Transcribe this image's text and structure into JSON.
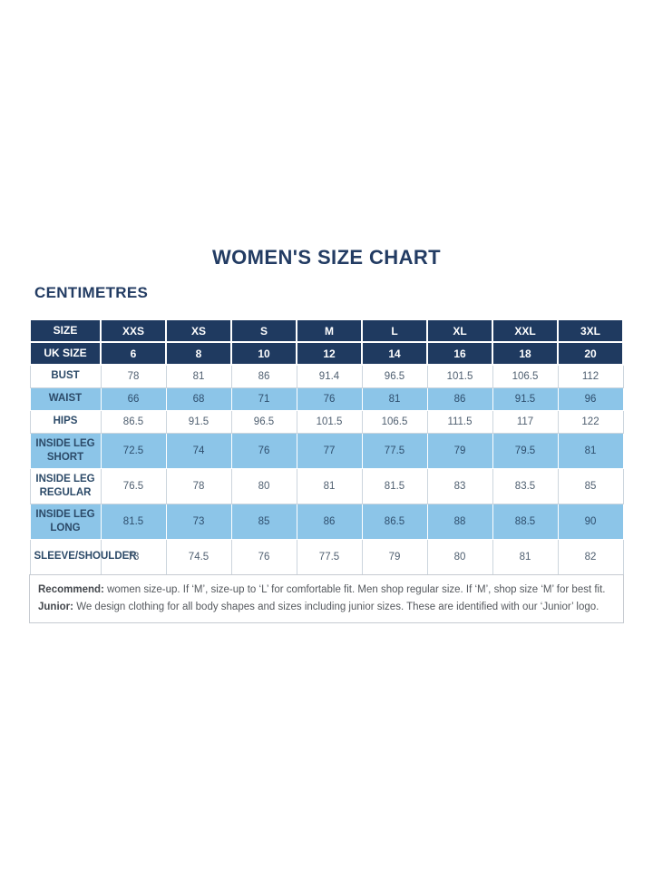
{
  "page": {
    "title": "WOMEN'S SIZE CHART",
    "subtitle": "CENTIMETRES"
  },
  "colors": {
    "header_navy": "#1f3a60",
    "shaded_blue": "#8cc5e8",
    "title_navy": "#233c63",
    "value_text": "#4f5f70",
    "border_gray": "#ccd5dd"
  },
  "table": {
    "rows": [
      {
        "style": "header",
        "tall": false,
        "label": "SIZE",
        "values": [
          "XXS",
          "XS",
          "S",
          "M",
          "L",
          "XL",
          "XXL",
          "3XL"
        ]
      },
      {
        "style": "header",
        "tall": false,
        "label": "UK SIZE",
        "values": [
          "6",
          "8",
          "10",
          "12",
          "14",
          "16",
          "18",
          "20"
        ]
      },
      {
        "style": "plain",
        "tall": false,
        "label": "BUST",
        "values": [
          "78",
          "81",
          "86",
          "91.4",
          "96.5",
          "101.5",
          "106.5",
          "112"
        ]
      },
      {
        "style": "shaded",
        "tall": false,
        "label": "WAIST",
        "values": [
          "66",
          "68",
          "71",
          "76",
          "81",
          "86",
          "91.5",
          "96"
        ]
      },
      {
        "style": "plain",
        "tall": false,
        "label": "HIPS",
        "values": [
          "86.5",
          "91.5",
          "96.5",
          "101.5",
          "106.5",
          "111.5",
          "117",
          "122"
        ]
      },
      {
        "style": "shaded",
        "tall": true,
        "label": "INSIDE LEG SHORT",
        "values": [
          "72.5",
          "74",
          "76",
          "77",
          "77.5",
          "79",
          "79.5",
          "81"
        ]
      },
      {
        "style": "plain",
        "tall": true,
        "label": "INSIDE LEG REGULAR",
        "values": [
          "76.5",
          "78",
          "80",
          "81",
          "81.5",
          "83",
          "83.5",
          "85"
        ]
      },
      {
        "style": "shaded",
        "tall": true,
        "label": "INSIDE LEG LONG",
        "values": [
          "81.5",
          "73",
          "85",
          "86",
          "86.5",
          "88",
          "88.5",
          "90"
        ]
      },
      {
        "style": "plain",
        "tall": true,
        "label": "SLEEVE/SHOULDER",
        "values": [
          "73",
          "74.5",
          "76",
          "77.5",
          "79",
          "80",
          "81",
          "82"
        ]
      }
    ]
  },
  "footer": {
    "recommend_label": "Recommend:",
    "recommend_text": "women size-up. If ‘M’, size-up to ‘L’ for comfortable fit. Men shop regular size. If ‘M’, shop size ‘M’ for best fit.",
    "junior_label": "Junior:",
    "junior_text": "We design clothing for all body shapes and sizes including junior sizes. These are identified with our ‘Junior’ logo."
  }
}
